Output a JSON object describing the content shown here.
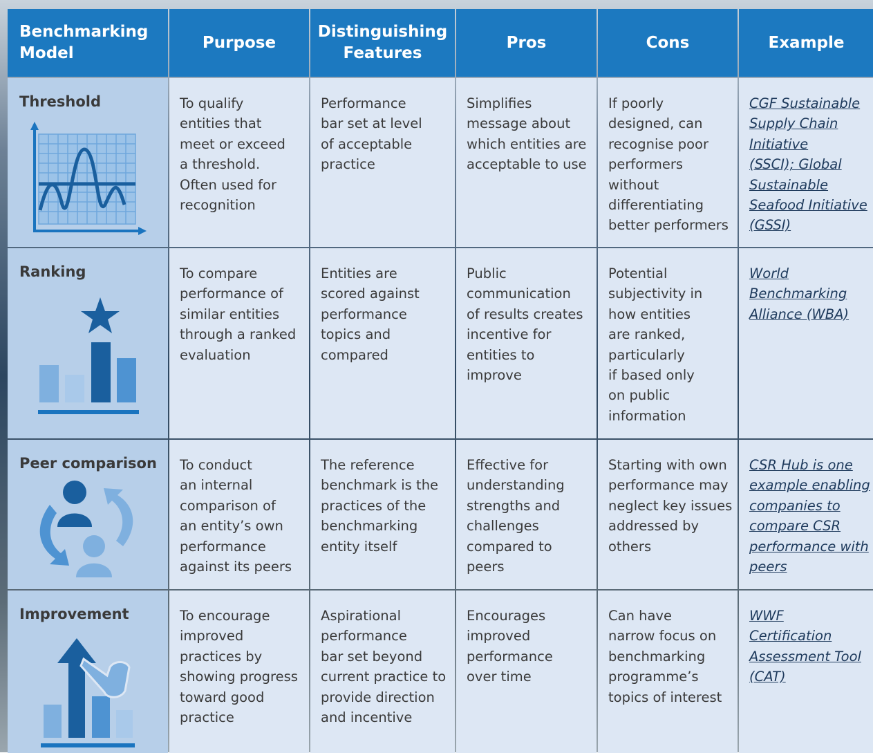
{
  "table": {
    "header": [
      [
        "Benchmarking",
        "Model"
      ],
      [
        "Purpose"
      ],
      [
        "Distinguishing",
        "Features"
      ],
      [
        "Pros"
      ],
      [
        "Cons"
      ],
      [
        "Example"
      ]
    ],
    "rows": [
      {
        "model": "Threshold",
        "cells": [
          [
            "To qualify",
            "entities that",
            "meet or exceed",
            "a threshold.",
            "Often used for",
            "recognition"
          ],
          [
            "Performance",
            "bar set at level",
            "of acceptable",
            "practice"
          ],
          [
            "Simplifies",
            "message about",
            "which entities are",
            "acceptable to use"
          ],
          [
            "If poorly",
            "designed, can",
            "recognise poor",
            "performers",
            "without",
            "differentiating",
            "better performers"
          ],
          [
            "CGF Sustainable",
            "Supply Chain",
            "Initiative",
            "(SSCI); Global",
            "Sustainable",
            "Seafood Initiative",
            "(GSSI)"
          ]
        ]
      },
      {
        "model": "Ranking",
        "cells": [
          [
            "To compare",
            "performance of",
            "similar entities",
            "through a ranked",
            "evaluation"
          ],
          [
            "Entities are",
            "scored against",
            "performance",
            "topics and",
            "compared"
          ],
          [
            "Public",
            "communication",
            "of results creates",
            "incentive for",
            "entities to",
            "improve"
          ],
          [
            "Potential",
            "subjectivity in",
            "how entities",
            "are ranked,",
            "particularly",
            "if based only",
            "on public",
            "information"
          ],
          [
            "World",
            "Benchmarking",
            "Alliance (WBA)"
          ]
        ]
      },
      {
        "model": "Peer comparison",
        "cells": [
          [
            "To conduct",
            "an internal",
            "comparison of",
            "an entity’s own",
            "performance",
            "against its peers"
          ],
          [
            "The reference",
            "benchmark is the",
            "practices of the",
            "benchmarking",
            "entity itself"
          ],
          [
            "Effective for",
            "understanding",
            "strengths and",
            "challenges",
            "compared to",
            "peers"
          ],
          [
            "Starting with own",
            "performance may",
            "neglect key issues",
            "addressed by",
            "others"
          ],
          [
            "CSR Hub is one",
            "example enabling",
            "companies to",
            "compare CSR",
            "performance with",
            "peers"
          ]
        ]
      },
      {
        "model": "Improvement",
        "cells": [
          [
            "To encourage",
            "improved",
            "practices by",
            "showing progress",
            "toward good",
            "practice"
          ],
          [
            "Aspirational",
            "performance",
            "bar set beyond",
            "current practice to",
            "provide direction",
            "and incentive"
          ],
          [
            "Encourages",
            "improved",
            "performance",
            "over time"
          ],
          [
            "Can have",
            "narrow focus on",
            "benchmarking",
            "programme’s",
            "topics of interest"
          ],
          [
            "WWF",
            "Certification",
            "Assessment Tool",
            "(CAT)"
          ]
        ]
      }
    ]
  }
}
